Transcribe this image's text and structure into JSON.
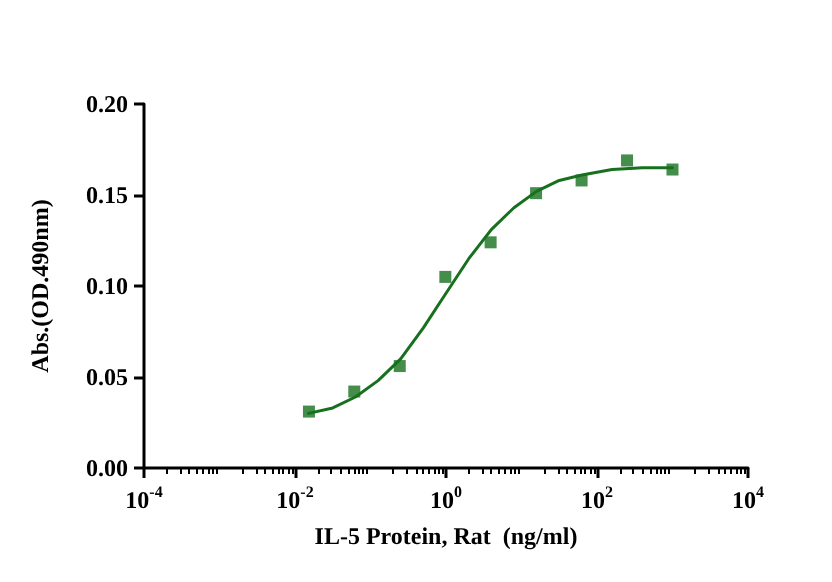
{
  "chart_data": {
    "type": "scatter",
    "xlabel": "IL-5 Protein, Rat  (ng/ml)",
    "ylabel": "Abs.(OD.490nm)",
    "log": "x",
    "grid": false,
    "xlim": [
      0.0001,
      10000
    ],
    "xticks": [
      {
        "value": 0.0001,
        "label": "10$^{-4}$"
      },
      {
        "value": 0.01,
        "label": "10$^{-2}$"
      },
      {
        "value": 1,
        "label": "10$^{0}$"
      },
      {
        "value": 100,
        "label": "10$^{2}$"
      },
      {
        "value": 10000,
        "label": "10$^{4}$"
      }
    ],
    "ylim": [
      0,
      0.2
    ],
    "yticks": [
      {
        "value": 0,
        "label": "0.00"
      },
      {
        "value": 0.05,
        "label": "0.05"
      },
      {
        "value": 0.1,
        "label": "0.10"
      },
      {
        "value": 0.15,
        "label": "0.15"
      },
      {
        "value": 0.2,
        "label": "0.20"
      }
    ],
    "series": [
      {
        "marker": "square",
        "color": "#17701d",
        "x": [
          0.0153,
          0.061,
          0.244,
          0.98,
          3.9,
          15.6,
          62.5,
          250,
          1000
        ],
        "values": [
          0.031,
          0.042,
          0.056,
          0.105,
          0.124,
          0.151,
          0.158,
          0.169,
          0.164
        ]
      },
      {
        "type": "line",
        "marker": "none",
        "line_style": "solid",
        "color": "#17701d",
        "x": [
          0.0151,
          0.0316,
          0.0631,
          0.126,
          0.251,
          0.501,
          1,
          2,
          3.98,
          7.94,
          15.8,
          31.6,
          63.1,
          158,
          398,
          1000
        ],
        "values": [
          0.03,
          0.033,
          0.039,
          0.048,
          0.06,
          0.077,
          0.096,
          0.115,
          0.131,
          0.143,
          0.152,
          0.158,
          0.161,
          0.164,
          0.165,
          0.165
        ]
      }
    ]
  }
}
